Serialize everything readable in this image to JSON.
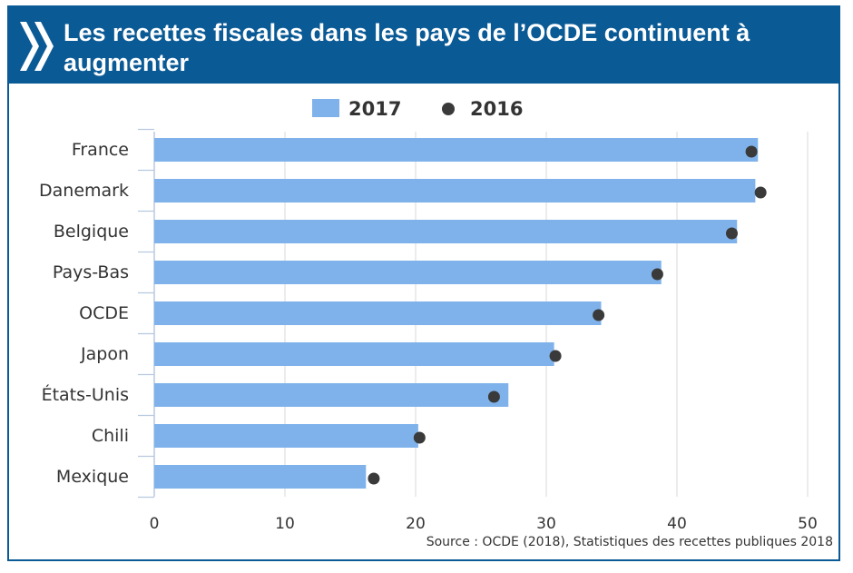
{
  "header": {
    "title": "Les recettes fiscales dans les pays de l’OCDE continuent à augmenter",
    "logo_icon": "oecd-chevrons-icon",
    "background": "#0a5a95"
  },
  "chart_data": {
    "type": "bar",
    "orientation": "horizontal",
    "categories": [
      "France",
      "Danemark",
      "Belgique",
      "Pays-Bas",
      "OCDE",
      "Japon",
      "États-Unis",
      "Chili",
      "Mexique"
    ],
    "series": [
      {
        "name": "2017",
        "kind": "bar",
        "color": "#7fb2ea",
        "values": [
          46.2,
          46.0,
          44.6,
          38.8,
          34.2,
          30.6,
          27.1,
          20.2,
          16.2
        ]
      },
      {
        "name": "2016",
        "kind": "marker",
        "color": "#3a3a3a",
        "values": [
          45.7,
          46.4,
          44.2,
          38.5,
          34.0,
          30.7,
          26.0,
          20.3,
          16.8
        ]
      }
    ],
    "xlim": [
      0,
      50
    ],
    "xticks": [
      "0",
      "10",
      "20",
      "30",
      "40",
      "50"
    ],
    "grid": true,
    "legend_position": "top-center",
    "source": "Source : OCDE (2018), Statistiques des recettes publiques 2018"
  }
}
